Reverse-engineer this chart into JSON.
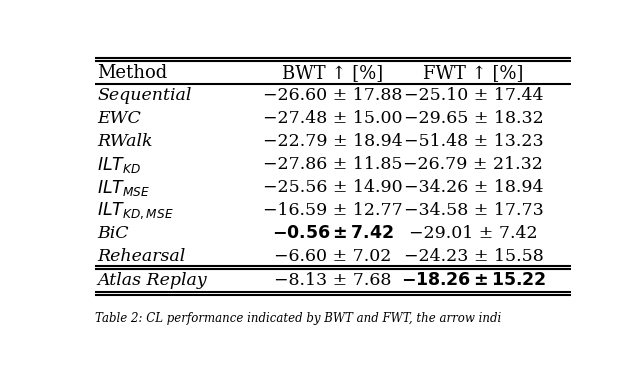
{
  "col_headers": [
    "Method",
    "BWT ↑ [%]",
    "FWT ↑ [%]"
  ],
  "rows": [
    {
      "method": "Sequential",
      "bwt": "−26.60 ± 17.88",
      "fwt": "−25.10 ± 17.44",
      "bwt_bold": false,
      "fwt_bold": false
    },
    {
      "method": "EWC",
      "bwt": "−27.48 ± 15.00",
      "fwt": "−29.65 ± 18.32",
      "bwt_bold": false,
      "fwt_bold": false
    },
    {
      "method": "RWalk",
      "bwt": "−22.79 ± 18.94",
      "fwt": "−51.48 ± 13.23",
      "bwt_bold": false,
      "fwt_bold": false
    },
    {
      "method": "ILT_KD",
      "bwt": "−27.86 ± 11.85",
      "fwt": "−26.79 ± 21.32",
      "bwt_bold": false,
      "fwt_bold": false
    },
    {
      "method": "ILT_MSE",
      "bwt": "−25.56 ± 14.90",
      "fwt": "−34.26 ± 18.94",
      "bwt_bold": false,
      "fwt_bold": false
    },
    {
      "method": "ILT_KD_MSE",
      "bwt": "−16.59 ± 12.77",
      "fwt": "−34.58 ± 17.73",
      "bwt_bold": false,
      "fwt_bold": false
    },
    {
      "method": "BiC",
      "bwt": "−0.56 ± 7.42",
      "fwt": "−29.01 ± 7.42",
      "bwt_bold": true,
      "fwt_bold": false
    },
    {
      "method": "Rehearsal",
      "bwt": "−6.60 ± 7.02",
      "fwt": "−24.23 ± 15.58",
      "bwt_bold": false,
      "fwt_bold": false
    },
    {
      "method": "Atlas Replay",
      "bwt": "−8.13 ± 7.68",
      "fwt": "−18.26 ± 15.22",
      "bwt_bold": false,
      "fwt_bold": true
    }
  ],
  "bg_color": "#ffffff",
  "text_color": "#000000",
  "font_size": 12.5,
  "header_font_size": 13.0,
  "caption": "Table 2: CL performance indicated by BWT and FWT, the arrow indi"
}
